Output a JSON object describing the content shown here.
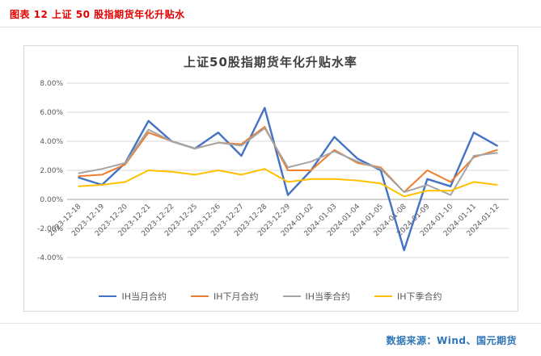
{
  "page": {
    "caption": "图表 12 上证 50 股指期货年化升贴水",
    "source": "数据来源：Wind、国元期货"
  },
  "chart_data": {
    "type": "line",
    "title": "上证50股指期货年化升贴水率",
    "categories": [
      "2023-12-18",
      "2023-12-19",
      "2023-12-20",
      "2023-12-21",
      "2023-12-22",
      "2023-12-25",
      "2023-12-26",
      "2023-12-27",
      "2023-12-28",
      "2023-12-29",
      "2024-01-02",
      "2024-01-03",
      "2024-01-04",
      "2024-01-05",
      "2024-01-08",
      "2024-01-09",
      "2024-01-10",
      "2024-01-11",
      "2024-01-12"
    ],
    "series": [
      {
        "name": "IH当月合约",
        "color": "#4472C4",
        "values": [
          1.5,
          1.0,
          2.5,
          5.4,
          4.0,
          3.5,
          4.6,
          3.0,
          6.3,
          0.3,
          2.0,
          4.3,
          2.8,
          2.0,
          -3.5,
          1.4,
          0.9,
          4.6,
          3.7
        ]
      },
      {
        "name": "IH下月合约",
        "color": "#ED7D31",
        "values": [
          1.6,
          1.7,
          2.4,
          4.6,
          4.0,
          3.5,
          3.9,
          3.8,
          5.0,
          2.0,
          2.0,
          3.4,
          2.5,
          2.2,
          0.5,
          2.0,
          1.2,
          2.9,
          3.4
        ]
      },
      {
        "name": "IH当季合约",
        "color": "#A5A5A5",
        "values": [
          1.8,
          2.1,
          2.5,
          4.8,
          4.0,
          3.5,
          3.9,
          3.7,
          4.9,
          2.2,
          2.6,
          3.3,
          2.6,
          2.1,
          0.5,
          1.0,
          0.3,
          3.0,
          3.2
        ]
      },
      {
        "name": "IH下季合约",
        "color": "#FFC000",
        "values": [
          0.9,
          1.0,
          1.2,
          2.0,
          1.9,
          1.7,
          2.0,
          1.7,
          2.1,
          1.2,
          1.4,
          1.4,
          1.3,
          1.1,
          0.2,
          0.6,
          0.6,
          1.2,
          1.0
        ]
      }
    ],
    "ylim": [
      -4,
      8
    ],
    "ytick_step": 2,
    "ytick_labels": [
      "8.00%",
      "6.00%",
      "4.00%",
      "2.00%",
      "0.00%",
      "-2.00%",
      "-4.00%"
    ],
    "grid": true,
    "legend_position": "bottom",
    "xlabel": "",
    "ylabel": ""
  }
}
